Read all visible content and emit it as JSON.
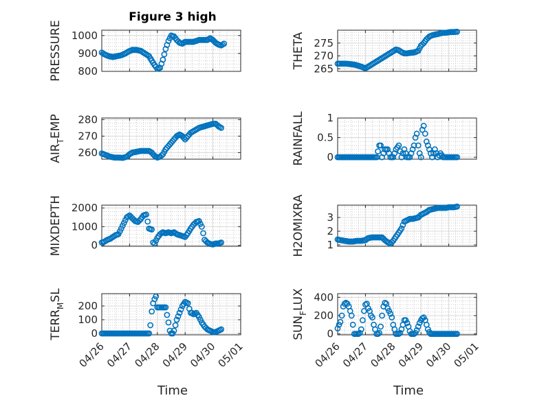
{
  "figure": {
    "title": "Figure 3 high",
    "xlabel": "Time",
    "marker_color": "#0072bd"
  },
  "chart_data": [
    {
      "type": "scatter",
      "ylabel": "PRESSURE",
      "ylim": [
        800,
        1030
      ],
      "yticks": [
        800,
        900,
        1000
      ],
      "xlim": [
        0,
        5
      ],
      "xticks": [
        "04/26",
        "04/27",
        "04/28",
        "04/29",
        "04/30",
        "05/01"
      ],
      "xtick_labels_shown": false,
      "grid": "on",
      "minor_grid": "on",
      "series": [
        {
          "x": [
            0.0,
            0.1,
            0.25,
            0.4,
            0.55,
            0.7,
            0.85,
            0.95,
            1.1,
            1.25,
            1.4,
            1.5,
            1.6,
            1.7,
            1.8,
            1.9,
            2.0,
            2.1,
            2.2,
            2.3,
            2.4,
            2.5,
            2.6,
            2.7,
            2.8,
            2.9,
            3.0,
            3.1,
            3.2,
            3.3,
            3.4,
            3.5,
            3.6,
            3.7,
            3.8,
            3.9,
            4.0,
            4.1,
            4.2,
            4.3,
            4.4
          ],
          "y": [
            905,
            895,
            885,
            880,
            885,
            890,
            900,
            910,
            920,
            920,
            915,
            905,
            895,
            885,
            860,
            835,
            815,
            820,
            865,
            925,
            970,
            1000,
            995,
            975,
            960,
            955,
            965,
            965,
            965,
            965,
            970,
            975,
            975,
            975,
            975,
            985,
            975,
            960,
            950,
            945,
            955
          ]
        }
      ]
    },
    {
      "type": "scatter",
      "ylabel": "THETA",
      "ylim": [
        264,
        280
      ],
      "yticks": [
        265,
        270,
        275
      ],
      "xlim": [
        0,
        5
      ],
      "xticks": [
        "04/26",
        "04/27",
        "04/28",
        "04/29",
        "04/30",
        "05/01"
      ],
      "xtick_labels_shown": false,
      "grid": "on",
      "minor_grid": "on",
      "series": [
        {
          "x": [
            0.0,
            0.15,
            0.3,
            0.45,
            0.6,
            0.75,
            0.9,
            1.0,
            1.1,
            1.2,
            1.35,
            1.5,
            1.65,
            1.8,
            1.95,
            2.1,
            2.2,
            2.3,
            2.4,
            2.5,
            2.6,
            2.7,
            2.8,
            2.9,
            3.0,
            3.1,
            3.2,
            3.3,
            3.4,
            3.5,
            3.6,
            3.7,
            3.8,
            3.9,
            4.0,
            4.1,
            4.2,
            4.3
          ],
          "y": [
            267,
            267,
            267,
            266.8,
            266.6,
            266.2,
            265.6,
            265.2,
            265.8,
            266.5,
            267.5,
            268.5,
            269.5,
            270.5,
            271.5,
            272.5,
            272.2,
            271.5,
            271,
            271,
            271.2,
            271.3,
            271.5,
            272,
            274,
            275,
            276.5,
            277.5,
            278,
            278.3,
            278.5,
            278.8,
            279,
            279,
            279.2,
            279.3,
            279.3,
            279.4
          ]
        }
      ]
    },
    {
      "type": "scatter",
      "ylabel_main": "AIR",
      "ylabel_sub": "T",
      "ylabel_rest": "EMP",
      "ylim": [
        256,
        281
      ],
      "yticks": [
        260,
        270,
        280
      ],
      "xlim": [
        0,
        5
      ],
      "xticks": [
        "04/26",
        "04/27",
        "04/28",
        "04/29",
        "04/30",
        "05/01"
      ],
      "xtick_labels_shown": false,
      "grid": "on",
      "minor_grid": "on",
      "series": [
        {
          "x": [
            0.0,
            0.15,
            0.3,
            0.45,
            0.6,
            0.75,
            0.9,
            1.0,
            1.1,
            1.25,
            1.4,
            1.55,
            1.7,
            1.8,
            1.9,
            2.0,
            2.1,
            2.2,
            2.3,
            2.4,
            2.5,
            2.6,
            2.7,
            2.8,
            2.9,
            3.0,
            3.1,
            3.2,
            3.3,
            3.4,
            3.5,
            3.6,
            3.7,
            3.8,
            3.9,
            4.0,
            4.1,
            4.2,
            4.3
          ],
          "y": [
            259.5,
            258.5,
            257.5,
            257,
            257,
            256.8,
            257.5,
            259,
            260,
            260.5,
            261,
            261,
            261,
            260,
            258,
            257,
            257.5,
            259,
            262,
            264,
            266,
            268,
            270,
            271,
            270,
            268,
            270,
            272,
            273,
            274,
            275,
            275.5,
            276,
            276.5,
            277,
            277.5,
            277.5,
            276,
            275
          ]
        }
      ]
    },
    {
      "type": "scatter",
      "ylabel": "RAINFALL",
      "ylim": [
        -0.05,
        1.0
      ],
      "yticks": [
        0,
        0.5,
        1
      ],
      "xlim": [
        0,
        5
      ],
      "xticks": [
        "04/26",
        "04/27",
        "04/28",
        "04/29",
        "04/30",
        "05/01"
      ],
      "xtick_labels_shown": false,
      "grid": "on",
      "minor_grid": "on",
      "series": [
        {
          "x": [
            0.0,
            0.15,
            0.3,
            0.45,
            0.6,
            0.75,
            0.9,
            1.0,
            1.1,
            1.2,
            1.3,
            1.4,
            1.5,
            1.55,
            1.6,
            1.7,
            1.8,
            1.9,
            1.95,
            2.0,
            2.1,
            2.2,
            2.3,
            2.4,
            2.5,
            2.6,
            2.65,
            2.7,
            2.75,
            2.8,
            2.85,
            2.9,
            2.95,
            3.0,
            3.05,
            3.1,
            3.15,
            3.2,
            3.3,
            3.4,
            3.5,
            3.6,
            3.7,
            3.8,
            3.9,
            4.0,
            4.1,
            4.2,
            4.3
          ],
          "y": [
            0,
            0,
            0,
            0,
            0,
            0,
            0,
            0,
            0,
            0,
            0,
            0,
            0.3,
            0.3,
            0,
            0.2,
            0.2,
            0,
            0,
            0,
            0.2,
            0.3,
            0,
            0.2,
            0,
            0,
            0.1,
            0.2,
            0.3,
            0.5,
            0.6,
            0.3,
            0.1,
            0,
            0.7,
            0.8,
            0.6,
            0.4,
            0.2,
            0,
            0.2,
            0,
            0.1,
            0,
            0,
            0,
            0,
            0,
            0
          ]
        }
      ]
    },
    {
      "type": "scatter",
      "ylabel": "MIXDEPTH",
      "ylim": [
        -50,
        2150
      ],
      "yticks": [
        0,
        1000,
        2000
      ],
      "xlim": [
        0,
        5
      ],
      "xticks": [
        "04/26",
        "04/27",
        "04/28",
        "04/29",
        "04/30",
        "05/01"
      ],
      "xtick_labels_shown": false,
      "grid": "on",
      "minor_grid": "on",
      "series": [
        {
          "x": [
            0.0,
            0.1,
            0.2,
            0.3,
            0.4,
            0.5,
            0.6,
            0.7,
            0.8,
            0.9,
            1.0,
            1.1,
            1.2,
            1.3,
            1.4,
            1.5,
            1.6,
            1.7,
            1.8,
            1.85,
            1.9,
            2.0,
            2.1,
            2.2,
            2.3,
            2.4,
            2.5,
            2.6,
            2.7,
            2.8,
            2.9,
            3.0,
            3.1,
            3.2,
            3.3,
            3.4,
            3.5,
            3.6,
            3.7,
            3.8,
            3.9,
            4.0,
            4.1,
            4.2,
            4.3
          ],
          "y": [
            150,
            200,
            300,
            350,
            450,
            550,
            600,
            900,
            1200,
            1500,
            1600,
            1450,
            1300,
            1250,
            1400,
            1600,
            1650,
            900,
            850,
            150,
            100,
            400,
            600,
            700,
            650,
            700,
            650,
            700,
            600,
            550,
            500,
            450,
            650,
            900,
            1100,
            1250,
            1300,
            1000,
            300,
            150,
            80,
            50,
            100,
            100,
            150
          ]
        }
      ]
    },
    {
      "type": "scatter",
      "ylabel": "H2OMIXRA",
      "ylim": [
        0.9,
        3.9
      ],
      "yticks": [
        1,
        2,
        3
      ],
      "xlim": [
        0,
        5
      ],
      "xticks": [
        "04/26",
        "04/27",
        "04/28",
        "04/29",
        "04/30",
        "05/01"
      ],
      "xtick_labels_shown": false,
      "grid": "on",
      "minor_grid": "on",
      "series": [
        {
          "x": [
            0.0,
            0.1,
            0.25,
            0.4,
            0.55,
            0.7,
            0.85,
            1.0,
            1.1,
            1.25,
            1.4,
            1.5,
            1.6,
            1.7,
            1.8,
            1.9,
            2.0,
            2.1,
            2.2,
            2.3,
            2.4,
            2.5,
            2.6,
            2.7,
            2.8,
            2.9,
            3.0,
            3.1,
            3.2,
            3.3,
            3.4,
            3.5,
            3.6,
            3.7,
            3.8,
            3.9,
            4.0,
            4.1,
            4.2,
            4.3
          ],
          "y": [
            1.4,
            1.35,
            1.3,
            1.25,
            1.25,
            1.3,
            1.3,
            1.35,
            1.5,
            1.55,
            1.55,
            1.55,
            1.55,
            1.35,
            1.2,
            1.1,
            1.3,
            1.6,
            1.9,
            2.2,
            2.7,
            2.8,
            2.9,
            2.9,
            2.95,
            3.0,
            3.2,
            3.3,
            3.4,
            3.55,
            3.6,
            3.65,
            3.7,
            3.7,
            3.7,
            3.7,
            3.75,
            3.75,
            3.75,
            3.8
          ]
        }
      ]
    },
    {
      "type": "scatter",
      "ylabel_main": "TERR",
      "ylabel_sub": "M",
      "ylabel_rest": "SL",
      "ylim": [
        -10,
        290
      ],
      "yticks": [
        0,
        100,
        200
      ],
      "xlim": [
        0,
        5
      ],
      "xticks": [
        "04/26",
        "04/27",
        "04/28",
        "04/29",
        "04/30",
        "05/01"
      ],
      "xtick_labels_shown": true,
      "grid": "on",
      "minor_grid": "on",
      "series": [
        {
          "x": [
            0.0,
            0.15,
            0.3,
            0.45,
            0.6,
            0.75,
            0.9,
            1.05,
            1.2,
            1.35,
            1.5,
            1.6,
            1.7,
            1.75,
            1.8,
            1.85,
            1.9,
            1.95,
            2.0,
            2.1,
            2.2,
            2.3,
            2.4,
            2.45,
            2.5,
            2.55,
            2.6,
            2.65,
            2.7,
            2.8,
            2.9,
            3.0,
            3.1,
            3.15,
            3.2,
            3.25,
            3.3,
            3.4,
            3.5,
            3.6,
            3.7,
            3.8,
            3.9,
            4.0,
            4.1,
            4.2,
            4.3
          ],
          "y": [
            0,
            0,
            0,
            0,
            0,
            0,
            0,
            0,
            0,
            0,
            0,
            0,
            0,
            60,
            160,
            220,
            250,
            270,
            190,
            190,
            190,
            190,
            80,
            20,
            0,
            0,
            20,
            60,
            100,
            150,
            200,
            230,
            220,
            180,
            150,
            150,
            140,
            150,
            120,
            80,
            50,
            30,
            20,
            10,
            10,
            20,
            30
          ]
        }
      ]
    },
    {
      "type": "scatter",
      "ylabel_main": "SUN",
      "ylabel_sub": "F",
      "ylabel_rest": "LUX",
      "ylim": [
        -10,
        440
      ],
      "yticks": [
        0,
        200,
        400
      ],
      "xlim": [
        0,
        5
      ],
      "xticks": [
        "04/26",
        "04/27",
        "04/28",
        "04/29",
        "04/30",
        "05/01"
      ],
      "xtick_labels_shown": true,
      "grid": "on",
      "minor_grid": "on",
      "series": [
        {
          "x": [
            0.0,
            0.05,
            0.1,
            0.15,
            0.2,
            0.25,
            0.3,
            0.35,
            0.4,
            0.45,
            0.5,
            0.55,
            0.6,
            0.65,
            0.7,
            0.75,
            0.8,
            0.85,
            0.9,
            0.95,
            1.0,
            1.05,
            1.1,
            1.15,
            1.2,
            1.25,
            1.3,
            1.35,
            1.4,
            1.45,
            1.5,
            1.55,
            1.6,
            1.65,
            1.7,
            1.75,
            1.8,
            1.85,
            1.9,
            1.95,
            2.0,
            2.05,
            2.1,
            2.15,
            2.2,
            2.25,
            2.3,
            2.35,
            2.4,
            2.45,
            2.5,
            2.55,
            2.6,
            2.65,
            2.7,
            2.75,
            2.8,
            2.85,
            2.9,
            2.95,
            3.0,
            3.05,
            3.1,
            3.15,
            3.2,
            3.25,
            3.3,
            3.35,
            3.4,
            3.45,
            3.5,
            3.55,
            3.6,
            3.65,
            3.7,
            3.75,
            3.8,
            3.85,
            3.9,
            3.95,
            4.0,
            4.05,
            4.1,
            4.2,
            4.3
          ],
          "y": [
            60,
            100,
            130,
            200,
            300,
            330,
            340,
            330,
            300,
            250,
            200,
            100,
            0,
            0,
            0,
            0,
            10,
            50,
            150,
            250,
            320,
            330,
            280,
            250,
            200,
            180,
            100,
            50,
            0,
            0,
            10,
            80,
            200,
            300,
            340,
            330,
            280,
            250,
            220,
            180,
            100,
            50,
            0,
            0,
            0,
            10,
            50,
            100,
            150,
            150,
            120,
            80,
            30,
            0,
            0,
            0,
            10,
            40,
            80,
            120,
            150,
            170,
            180,
            150,
            100,
            50,
            20,
            0,
            0,
            0,
            0,
            0,
            0,
            0,
            0,
            0,
            0,
            0,
            0,
            0,
            0,
            0,
            0,
            0,
            0
          ]
        }
      ]
    }
  ]
}
